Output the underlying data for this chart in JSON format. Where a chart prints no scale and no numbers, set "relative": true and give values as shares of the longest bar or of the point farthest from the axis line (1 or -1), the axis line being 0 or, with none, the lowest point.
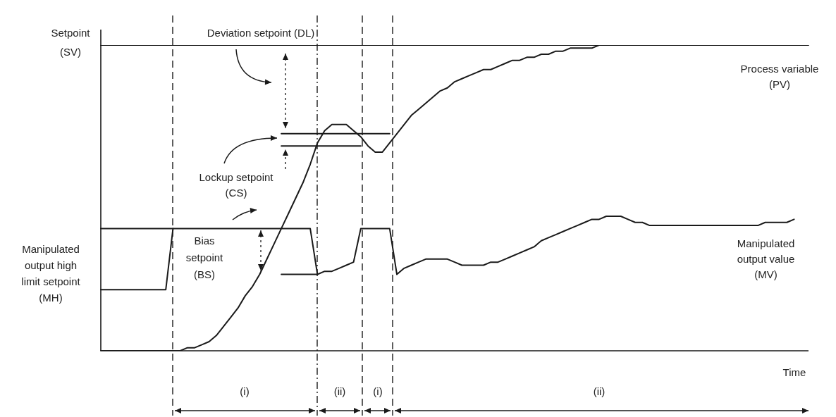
{
  "chart_data": {
    "type": "line",
    "relative": true,
    "xlabel": "Time",
    "categories": [
      null,
      null,
      null,
      null,
      null,
      null,
      null,
      null,
      null,
      null,
      null,
      null,
      null,
      null,
      null,
      null,
      null,
      null,
      null,
      null,
      null,
      null,
      null,
      null,
      null,
      null,
      null,
      null,
      null,
      null,
      null,
      null,
      null,
      null,
      null,
      null,
      null,
      null,
      null,
      null,
      null,
      null,
      null,
      null,
      null,
      null,
      null,
      null,
      null,
      null,
      null,
      null,
      null,
      null,
      null,
      null,
      null,
      null,
      null,
      null,
      null,
      null,
      null,
      null,
      null,
      null,
      null,
      null,
      null,
      null,
      null,
      null,
      null,
      null,
      null,
      null,
      null,
      null,
      null,
      null,
      null,
      null,
      null,
      null,
      null,
      null,
      null,
      null,
      null,
      null,
      null,
      null,
      null,
      null,
      null,
      null,
      null,
      null,
      null
    ],
    "series": [
      {
        "name": "Process variable\n(PV)",
        "color": "#1a1a1a",
        "values": [
          0,
          0,
          0,
          0,
          0,
          0,
          0,
          0,
          0,
          0,
          0,
          0,
          0.01,
          0.01,
          0.02,
          0.03,
          0.05,
          0.08,
          0.11,
          0.14,
          0.18,
          0.21,
          0.25,
          0.3,
          0.35,
          0.4,
          0.45,
          0.5,
          0.55,
          0.61,
          0.68,
          0.72,
          0.74,
          0.74,
          0.74,
          0.72,
          0.7,
          0.67,
          0.65,
          0.65,
          0.68,
          0.71,
          0.74,
          0.77,
          0.79,
          0.81,
          0.83,
          0.85,
          0.86,
          0.88,
          0.89,
          0.9,
          0.91,
          0.92,
          0.92,
          0.93,
          0.94,
          0.95,
          0.95,
          0.96,
          0.96,
          0.97,
          0.97,
          0.98,
          0.98,
          0.99,
          0.99,
          0.99,
          0.99,
          1,
          1,
          1,
          1,
          1,
          1,
          1,
          1,
          1,
          1,
          1,
          1,
          1,
          1,
          1,
          1,
          1,
          1,
          1,
          1,
          1,
          1,
          1,
          1,
          1,
          1,
          1,
          1,
          1,
          1
        ]
      },
      {
        "name": "Manipulated\noutput value\n(MV)",
        "color": "#1a1a1a",
        "values": [
          0.2,
          0.2,
          0.2,
          0.2,
          0.2,
          0.2,
          0.2,
          0.2,
          0.2,
          0.2,
          0.4,
          0.4,
          0.4,
          0.4,
          0.4,
          0.4,
          0.4,
          0.4,
          0.4,
          0.4,
          0.4,
          0.4,
          0.4,
          0.4,
          0.4,
          0.4,
          0.4,
          0.4,
          0.4,
          0.4,
          0.25,
          0.26,
          0.26,
          0.27,
          0.28,
          0.29,
          0.4,
          0.4,
          0.4,
          0.4,
          0.4,
          0.25,
          0.27,
          0.28,
          0.29,
          0.3,
          0.3,
          0.3,
          0.3,
          0.29,
          0.28,
          0.28,
          0.28,
          0.28,
          0.29,
          0.29,
          0.3,
          0.31,
          0.32,
          0.33,
          0.34,
          0.36,
          0.37,
          0.38,
          0.39,
          0.4,
          0.41,
          0.42,
          0.43,
          0.43,
          0.44,
          0.44,
          0.44,
          0.43,
          0.42,
          0.42,
          0.41,
          0.41,
          0.41,
          0.41,
          0.41,
          0.41,
          0.41,
          0.41,
          0.41,
          0.41,
          0.41,
          0.41,
          0.41,
          0.41,
          0.41,
          0.41,
          0.42,
          0.42,
          0.42,
          0.42,
          0.43,
          null,
          null
        ]
      },
      {
        "color": "#1a1a1a",
        "values": [
          1,
          1,
          1,
          1,
          1,
          1,
          1,
          1,
          1,
          1,
          1,
          1,
          1,
          1,
          1,
          1,
          1,
          1,
          1,
          1,
          1,
          1,
          1,
          1,
          1,
          1,
          1,
          1,
          1,
          1,
          1,
          1,
          1,
          1,
          1,
          1,
          1,
          1,
          1,
          1,
          1,
          1,
          1,
          1,
          1,
          1,
          1,
          1,
          1,
          1,
          1,
          1,
          1,
          1,
          1,
          1,
          1,
          1,
          1,
          1,
          1,
          1,
          1,
          1,
          1,
          1,
          1,
          1,
          1,
          1,
          1,
          1,
          1,
          null,
          null,
          null,
          null,
          null,
          null,
          null,
          null,
          null,
          null,
          null,
          null,
          null,
          null,
          null,
          null,
          null,
          null,
          null,
          null,
          null,
          null,
          null,
          null,
          null,
          null
        ]
      },
      {
        "color": "#1a1a1a",
        "values": [
          0.4,
          0.4,
          0.4,
          0.4,
          0.4,
          0.4,
          0.4,
          0.4,
          0.4,
          0.4,
          0.4,
          null,
          null,
          null,
          null,
          null,
          null,
          null,
          null,
          null,
          null,
          null,
          null,
          null,
          null,
          null,
          null,
          null,
          null,
          null,
          null,
          null,
          null,
          null,
          null,
          null,
          null,
          null,
          null,
          null,
          null,
          null,
          null,
          null,
          null,
          null,
          null,
          null,
          null,
          null,
          null,
          null,
          null,
          null,
          null,
          null,
          null,
          null,
          null,
          null,
          null,
          null,
          null,
          null,
          null,
          null,
          null,
          null,
          null,
          null,
          null,
          null,
          null,
          null,
          null,
          null,
          null,
          null,
          null,
          null,
          null,
          null,
          null,
          null,
          null,
          null,
          null,
          null,
          null,
          null,
          null,
          null,
          null,
          null,
          null,
          null,
          null,
          null,
          null
        ]
      },
      {
        "color": "#1a1a1a",
        "values": [
          null,
          null,
          null,
          null,
          null,
          null,
          null,
          null,
          null,
          null,
          null,
          null,
          null,
          null,
          null,
          null,
          null,
          null,
          null,
          null,
          null,
          null,
          null,
          null,
          null,
          0.71,
          0.71,
          0.71,
          0.71,
          0.71,
          0.71,
          0.71,
          0.71,
          0.71,
          0.71,
          0.71,
          0.71,
          0.71,
          0.71,
          0.71,
          0.71,
          null,
          null,
          null,
          null,
          null,
          null,
          null,
          null,
          null,
          null,
          null,
          null,
          null,
          null,
          null,
          null,
          null,
          null,
          null,
          null,
          null,
          null,
          null,
          null,
          null,
          null,
          null,
          null,
          null,
          null,
          null,
          null,
          null,
          null,
          null,
          null,
          null,
          null,
          null,
          null,
          null,
          null,
          null,
          null,
          null,
          null,
          null,
          null,
          null,
          null,
          null,
          null,
          null,
          null,
          null,
          null,
          null,
          null
        ]
      },
      {
        "color": "#1a1a1a",
        "values": [
          null,
          null,
          null,
          null,
          null,
          null,
          null,
          null,
          null,
          null,
          null,
          null,
          null,
          null,
          null,
          null,
          null,
          null,
          null,
          null,
          null,
          null,
          null,
          null,
          null,
          0.67,
          0.67,
          0.67,
          0.67,
          0.67,
          0.67,
          0.67,
          0.67,
          0.67,
          0.67,
          0.67,
          0.67,
          null,
          null,
          null,
          null,
          null,
          null,
          null,
          null,
          null,
          null,
          null,
          null,
          null,
          null,
          null,
          null,
          null,
          null,
          null,
          null,
          null,
          null,
          null,
          null,
          null,
          null,
          null,
          null,
          null,
          null,
          null,
          null,
          null,
          null,
          null,
          null,
          null,
          null,
          null,
          null,
          null,
          null,
          null,
          null,
          null,
          null,
          null,
          null,
          null,
          null,
          null,
          null,
          null,
          null,
          null,
          null,
          null,
          null,
          null,
          null,
          null,
          null
        ]
      },
      {
        "color": "#1a1a1a",
        "values": [
          null,
          null,
          null,
          null,
          null,
          null,
          null,
          null,
          null,
          null,
          null,
          null,
          null,
          null,
          null,
          null,
          null,
          null,
          null,
          null,
          null,
          null,
          null,
          null,
          null,
          0.25,
          0.25,
          0.25,
          0.25,
          0.25,
          0.25,
          null,
          null,
          null,
          null,
          null,
          null,
          null,
          null,
          null,
          null,
          null,
          null,
          null,
          null,
          null,
          null,
          null,
          null,
          null,
          null,
          null,
          null,
          null,
          null,
          null,
          null,
          null,
          null,
          null,
          null,
          null,
          null,
          null,
          null,
          null,
          null,
          null,
          null,
          null,
          null,
          null,
          null,
          null,
          null,
          null,
          null,
          null,
          null,
          null,
          null,
          null,
          null,
          null,
          null,
          null,
          null,
          null,
          null,
          null,
          null,
          null,
          null,
          null,
          null,
          null,
          null,
          null,
          null
        ]
      }
    ],
    "annotations": [
      "Setpoint\n(SV)",
      "Manipulated\noutput high\nlimit setpoint\n(MH)",
      "Deviation setpoint (DL)",
      "Lockup setpoint\n(CS)",
      "Bias\nsetpoint\n(BS)",
      "(i)",
      "(ii)",
      "(i)",
      "(ii)"
    ]
  }
}
